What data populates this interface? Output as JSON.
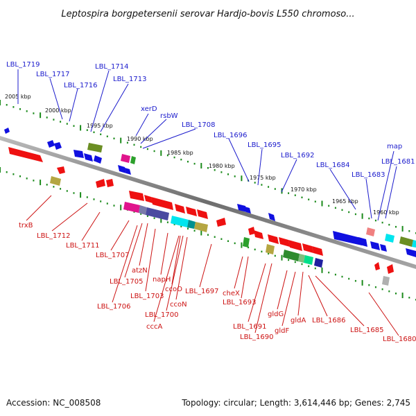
{
  "title": "Leptospira borgpetersenii serovar Hardjo-bovis L550 chromoso...",
  "footer": {
    "accession": "Accession: NC_008508",
    "summary": "Topology: circular; Length: 3,614,446 bp; Genes: 2,745"
  },
  "colors": {
    "backbone": "#8a8a8a",
    "upper_labels": "#1a1acc",
    "lower_labels": "#cc1111",
    "ticks": "#1a8a1a"
  },
  "scale": [
    "2005 kbp",
    "2000 kbp",
    "1995 kbp",
    "1990 kbp",
    "1985 kbp",
    "1980 kbp",
    "1975 kbp",
    "1970 kbp",
    "1965 kbp",
    "1960 kbp"
  ],
  "upper_labels": [
    "LBL_1719",
    "LBL_1717",
    "LBL_1716",
    "LBL_1714",
    "LBL_1713",
    "xerD",
    "rsbW",
    "LBL_1708",
    "LBL_1696",
    "LBL_1695",
    "LBL_1692",
    "LBL_1684",
    "LBL_1683",
    "map",
    "LBL_1681"
  ],
  "lower_labels": [
    "trxB",
    "LBL_1712",
    "LBL_1711",
    "LBL_1707",
    "atzN",
    "LBL_1705",
    "napH",
    "LBL_1703",
    "ccoO",
    "LBL_1706",
    "LBL_1700",
    "ccoN",
    "cccA",
    "LBL_1697",
    "cheX",
    "LBL_1693",
    "LBL_1691",
    "LBL_1690",
    "gldG",
    "gldF",
    "gldA",
    "LBL_1686",
    "LBL_1685",
    "LBL_1680"
  ]
}
